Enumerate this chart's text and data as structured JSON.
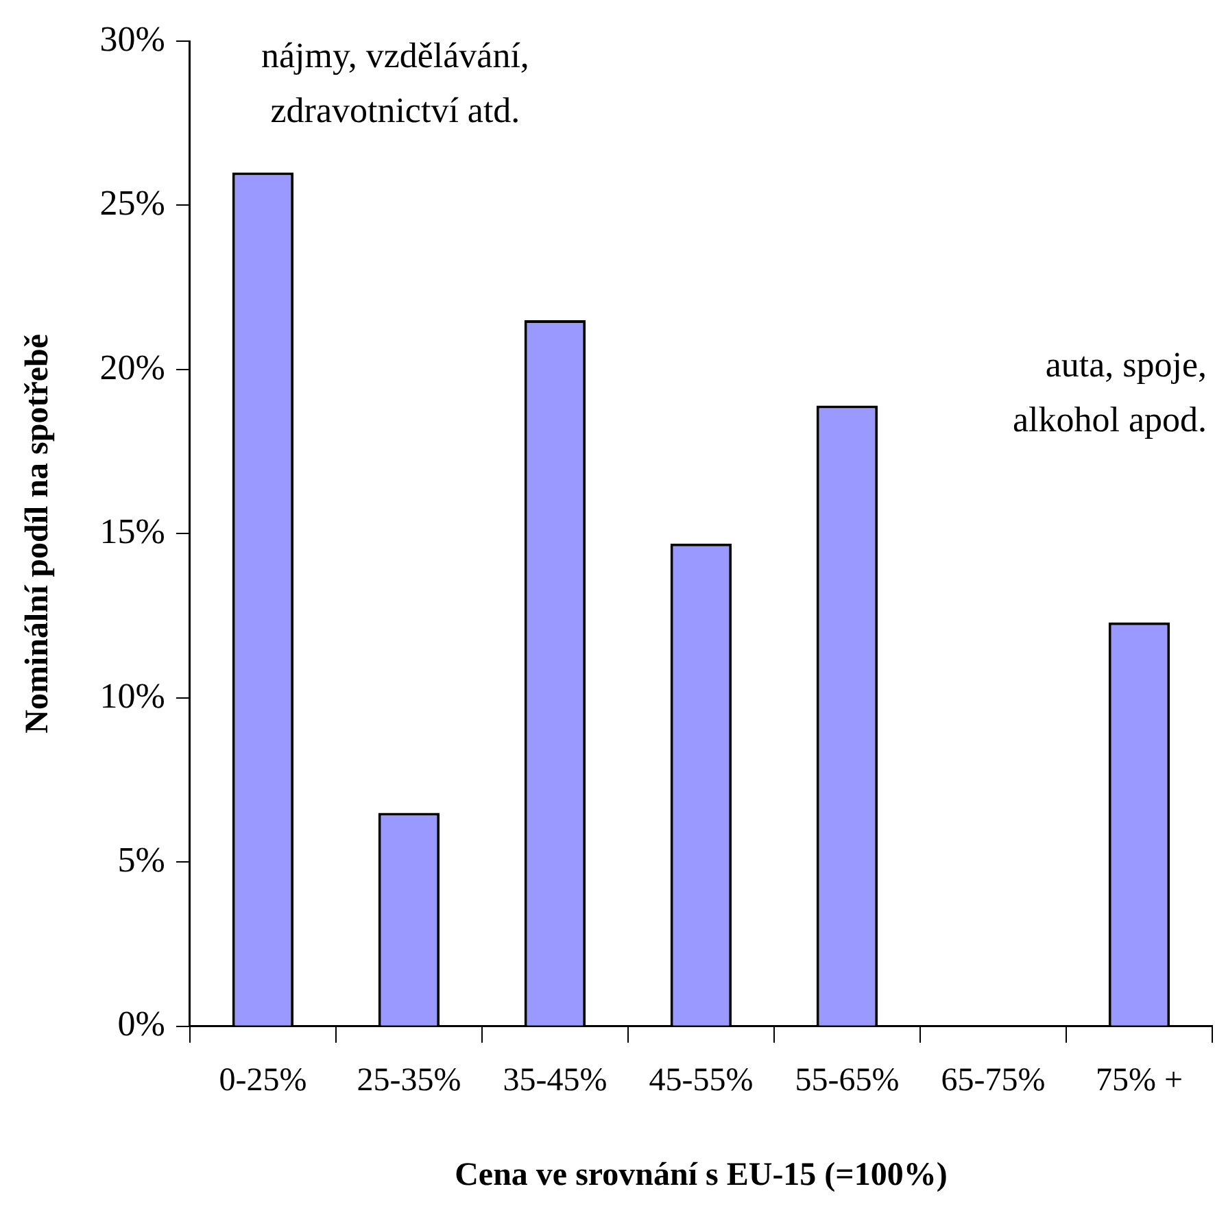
{
  "chart_data": {
    "type": "bar",
    "xlabel": "Cena ve srovnání s EU-15 (=100%)",
    "ylabel": "Nominální podíl na spotřebě",
    "categories": [
      "0-25%",
      "25-35%",
      "35-45%",
      "45-55%",
      "55-65%",
      "65-75%",
      "75% +"
    ],
    "values": [
      26,
      6.5,
      21.5,
      14.7,
      18.9,
      null,
      12.3
    ],
    "color": "#9999ff",
    "ylim": [
      0,
      30
    ],
    "yticks": [
      {
        "value": 0,
        "label": "0%"
      },
      {
        "value": 5,
        "label": "5%"
      },
      {
        "value": 10,
        "label": "10%"
      },
      {
        "value": 15,
        "label": "15%"
      },
      {
        "value": 20,
        "label": "20%"
      },
      {
        "value": 25,
        "label": "25%"
      },
      {
        "value": 30,
        "label": "30%"
      }
    ],
    "grid": false,
    "legend": false,
    "annotations": [
      "nájmy, vzdělávání,\nzdravotnictví atd.",
      "auta, spoje,\nalkohol apod."
    ]
  }
}
